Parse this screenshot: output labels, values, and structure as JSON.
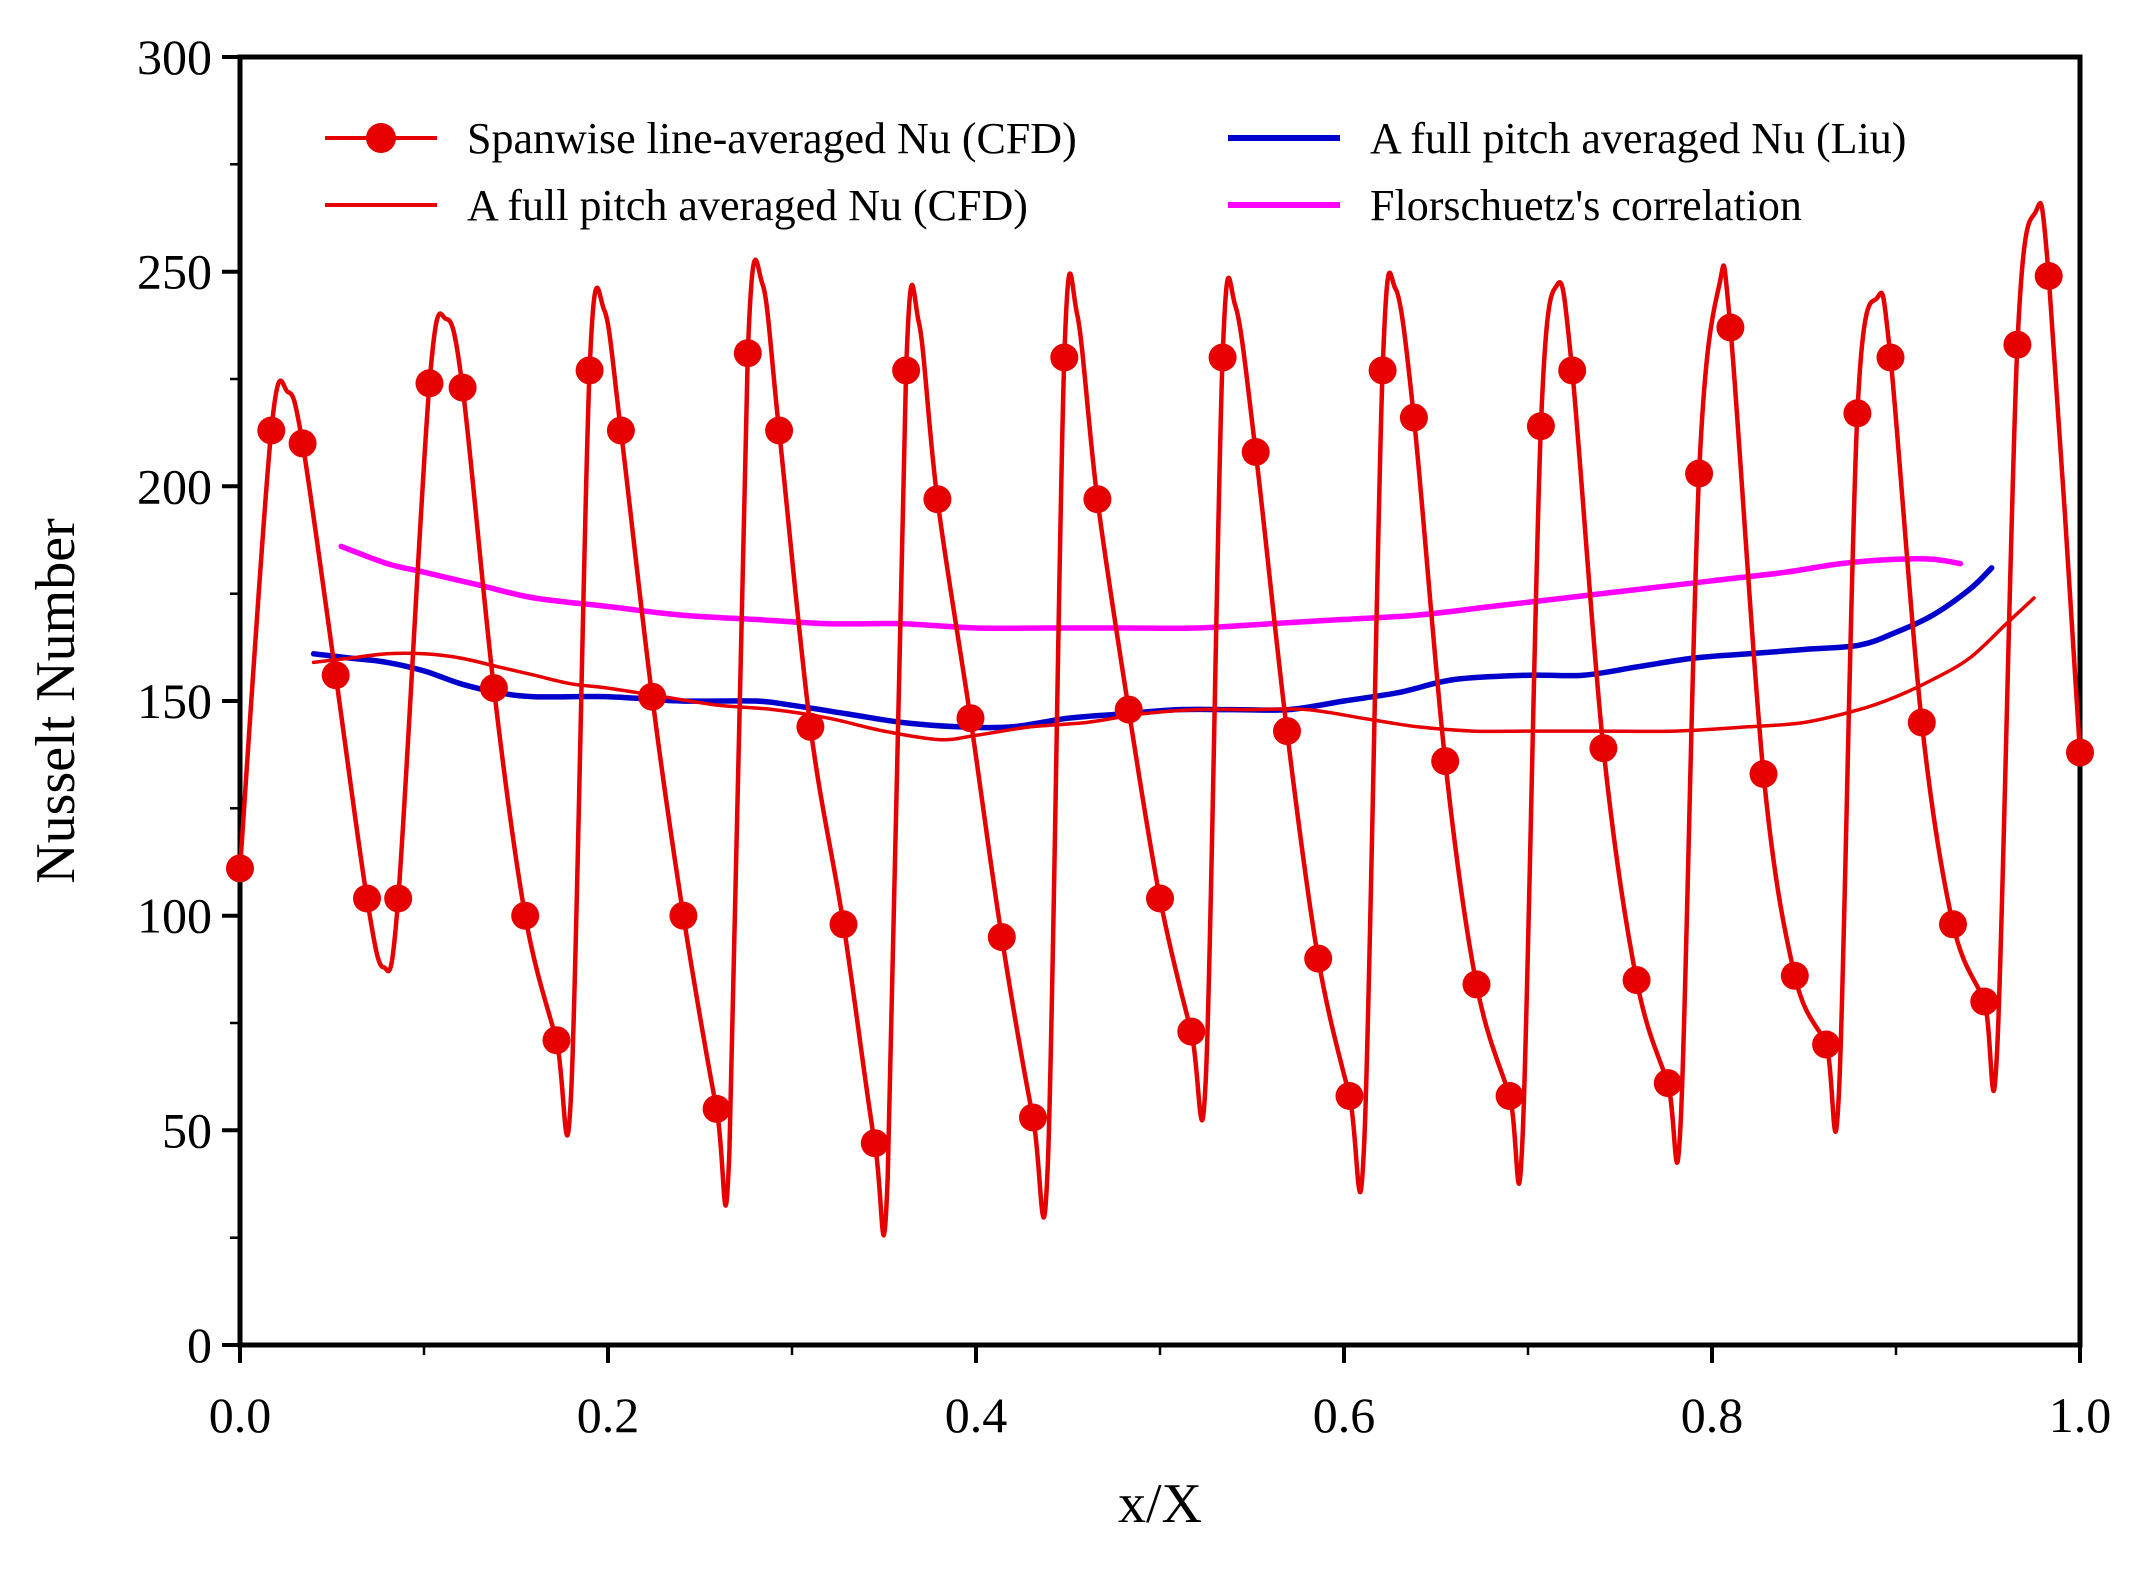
{
  "chart_data": {
    "type": "line",
    "xlabel": "x/X",
    "ylabel": "Nusselt Number",
    "xlim": [
      0,
      1
    ],
    "ylim": [
      0,
      300
    ],
    "x_tick_values": [
      0,
      0.2,
      0.4,
      0.6,
      0.8,
      1.0
    ],
    "x_tick_labels": [
      "0.0",
      "0.2",
      "0.4",
      "0.6",
      "0.8",
      "1.0"
    ],
    "y_tick_values": [
      0,
      50,
      100,
      150,
      200,
      250,
      300
    ],
    "y_tick_labels": [
      "0",
      "50",
      "100",
      "150",
      "200",
      "250",
      "300"
    ],
    "x_minor_step": 0.1,
    "y_minor_step": 25,
    "axis_color": "#000000",
    "grid": false,
    "legend_position": "top-inside-two-columns",
    "draw_order": [
      3,
      2,
      1,
      0
    ],
    "series": [
      {
        "name": "Spanwise line-averaged Nu (CFD)",
        "slug": "spanwise-cfd",
        "type": "line+markers",
        "color": "#e60000",
        "line_width": 4.5,
        "marker_radius": 14,
        "markers": [
          [
            0.0,
            111
          ],
          [
            0.017,
            213
          ],
          [
            0.034,
            210
          ],
          [
            0.052,
            156
          ],
          [
            0.069,
            104
          ],
          [
            0.086,
            104
          ],
          [
            0.103,
            224
          ],
          [
            0.121,
            223
          ],
          [
            0.138,
            153
          ],
          [
            0.155,
            100
          ],
          [
            0.172,
            71
          ],
          [
            0.19,
            227
          ],
          [
            0.207,
            213
          ],
          [
            0.224,
            151
          ],
          [
            0.241,
            100
          ],
          [
            0.259,
            55
          ],
          [
            0.276,
            231
          ],
          [
            0.293,
            213
          ],
          [
            0.31,
            144
          ],
          [
            0.328,
            98
          ],
          [
            0.345,
            47
          ],
          [
            0.362,
            227
          ],
          [
            0.379,
            197
          ],
          [
            0.397,
            146
          ],
          [
            0.414,
            95
          ],
          [
            0.431,
            53
          ],
          [
            0.448,
            230
          ],
          [
            0.466,
            197
          ],
          [
            0.483,
            148
          ],
          [
            0.5,
            104
          ],
          [
            0.517,
            73
          ],
          [
            0.534,
            230
          ],
          [
            0.552,
            208
          ],
          [
            0.569,
            143
          ],
          [
            0.586,
            90
          ],
          [
            0.603,
            58
          ],
          [
            0.621,
            227
          ],
          [
            0.638,
            216
          ],
          [
            0.655,
            136
          ],
          [
            0.672,
            84
          ],
          [
            0.69,
            58
          ],
          [
            0.707,
            214
          ],
          [
            0.724,
            227
          ],
          [
            0.741,
            139
          ],
          [
            0.759,
            85
          ],
          [
            0.776,
            61
          ],
          [
            0.793,
            203
          ],
          [
            0.81,
            237
          ],
          [
            0.828,
            133
          ],
          [
            0.845,
            86
          ],
          [
            0.862,
            70
          ],
          [
            0.879,
            217
          ],
          [
            0.897,
            230
          ],
          [
            0.914,
            145
          ],
          [
            0.931,
            98
          ],
          [
            0.948,
            80
          ],
          [
            0.966,
            233
          ],
          [
            0.983,
            249
          ],
          [
            1.0,
            138
          ]
        ],
        "curve": [
          [
            0.0,
            111
          ],
          [
            0.017,
            213
          ],
          [
            0.026,
            222
          ],
          [
            0.034,
            210
          ],
          [
            0.052,
            156
          ],
          [
            0.069,
            104
          ],
          [
            0.078,
            88
          ],
          [
            0.086,
            104
          ],
          [
            0.103,
            224
          ],
          [
            0.112,
            239
          ],
          [
            0.121,
            223
          ],
          [
            0.138,
            153
          ],
          [
            0.155,
            100
          ],
          [
            0.172,
            71
          ],
          [
            0.18,
            59
          ],
          [
            0.19,
            227
          ],
          [
            0.198,
            241
          ],
          [
            0.207,
            213
          ],
          [
            0.224,
            151
          ],
          [
            0.241,
            100
          ],
          [
            0.259,
            55
          ],
          [
            0.266,
            45
          ],
          [
            0.276,
            231
          ],
          [
            0.284,
            247
          ],
          [
            0.293,
            213
          ],
          [
            0.31,
            144
          ],
          [
            0.328,
            98
          ],
          [
            0.345,
            47
          ],
          [
            0.352,
            39
          ],
          [
            0.362,
            227
          ],
          [
            0.369,
            238
          ],
          [
            0.379,
            197
          ],
          [
            0.397,
            146
          ],
          [
            0.414,
            95
          ],
          [
            0.431,
            53
          ],
          [
            0.439,
            42
          ],
          [
            0.448,
            230
          ],
          [
            0.455,
            240
          ],
          [
            0.466,
            197
          ],
          [
            0.483,
            148
          ],
          [
            0.5,
            104
          ],
          [
            0.517,
            73
          ],
          [
            0.525,
            63
          ],
          [
            0.534,
            230
          ],
          [
            0.541,
            242
          ],
          [
            0.552,
            208
          ],
          [
            0.569,
            143
          ],
          [
            0.586,
            90
          ],
          [
            0.603,
            58
          ],
          [
            0.611,
            47
          ],
          [
            0.621,
            227
          ],
          [
            0.628,
            246
          ],
          [
            0.638,
            216
          ],
          [
            0.655,
            136
          ],
          [
            0.672,
            84
          ],
          [
            0.69,
            58
          ],
          [
            0.697,
            48
          ],
          [
            0.707,
            214
          ],
          [
            0.716,
            247
          ],
          [
            0.724,
            227
          ],
          [
            0.741,
            139
          ],
          [
            0.759,
            85
          ],
          [
            0.776,
            61
          ],
          [
            0.783,
            52
          ],
          [
            0.793,
            203
          ],
          [
            0.804,
            247
          ],
          [
            0.81,
            237
          ],
          [
            0.828,
            133
          ],
          [
            0.845,
            86
          ],
          [
            0.862,
            70
          ],
          [
            0.869,
            59
          ],
          [
            0.879,
            217
          ],
          [
            0.89,
            244
          ],
          [
            0.897,
            230
          ],
          [
            0.914,
            145
          ],
          [
            0.931,
            98
          ],
          [
            0.948,
            80
          ],
          [
            0.955,
            69
          ],
          [
            0.966,
            233
          ],
          [
            0.976,
            264
          ],
          [
            0.983,
            249
          ],
          [
            1.0,
            138
          ]
        ]
      },
      {
        "name": "A full pitch averaged Nu (CFD)",
        "slug": "pitch-avg-cfd",
        "type": "line",
        "color": "#e60000",
        "line_width": 3.5,
        "curve": [
          [
            0.04,
            159
          ],
          [
            0.06,
            160
          ],
          [
            0.08,
            161
          ],
          [
            0.1,
            161
          ],
          [
            0.12,
            160
          ],
          [
            0.14,
            158
          ],
          [
            0.16,
            156
          ],
          [
            0.18,
            154
          ],
          [
            0.2,
            153
          ],
          [
            0.23,
            151
          ],
          [
            0.26,
            149
          ],
          [
            0.29,
            148
          ],
          [
            0.32,
            146
          ],
          [
            0.35,
            143
          ],
          [
            0.38,
            141
          ],
          [
            0.4,
            142
          ],
          [
            0.43,
            144
          ],
          [
            0.46,
            145
          ],
          [
            0.49,
            147
          ],
          [
            0.52,
            148
          ],
          [
            0.55,
            148
          ],
          [
            0.58,
            148
          ],
          [
            0.61,
            146
          ],
          [
            0.64,
            144
          ],
          [
            0.67,
            143
          ],
          [
            0.7,
            143
          ],
          [
            0.74,
            143
          ],
          [
            0.78,
            143
          ],
          [
            0.82,
            144
          ],
          [
            0.85,
            145
          ],
          [
            0.88,
            148
          ],
          [
            0.9,
            151
          ],
          [
            0.92,
            155
          ],
          [
            0.94,
            160
          ],
          [
            0.96,
            168
          ],
          [
            0.975,
            174
          ]
        ]
      },
      {
        "name": "A full pitch averaged Nu (Liu)",
        "slug": "pitch-avg-liu",
        "type": "line",
        "color": "#0000cd",
        "line_width": 5.5,
        "curve": [
          [
            0.04,
            161
          ],
          [
            0.06,
            160
          ],
          [
            0.08,
            159
          ],
          [
            0.1,
            157
          ],
          [
            0.12,
            154
          ],
          [
            0.14,
            152
          ],
          [
            0.16,
            151
          ],
          [
            0.2,
            151
          ],
          [
            0.24,
            150
          ],
          [
            0.28,
            150
          ],
          [
            0.3,
            149
          ],
          [
            0.33,
            147
          ],
          [
            0.36,
            145
          ],
          [
            0.39,
            144
          ],
          [
            0.42,
            144
          ],
          [
            0.45,
            146
          ],
          [
            0.48,
            147
          ],
          [
            0.51,
            148
          ],
          [
            0.54,
            148
          ],
          [
            0.57,
            148
          ],
          [
            0.6,
            150
          ],
          [
            0.63,
            152
          ],
          [
            0.66,
            155
          ],
          [
            0.7,
            156
          ],
          [
            0.73,
            156
          ],
          [
            0.76,
            158
          ],
          [
            0.79,
            160
          ],
          [
            0.82,
            161
          ],
          [
            0.85,
            162
          ],
          [
            0.88,
            163
          ],
          [
            0.9,
            166
          ],
          [
            0.92,
            170
          ],
          [
            0.94,
            176
          ],
          [
            0.952,
            181
          ]
        ]
      },
      {
        "name": "Florschuetz's correlation",
        "slug": "florschuetz",
        "type": "line",
        "color": "#ff00ff",
        "line_width": 5.5,
        "curve": [
          [
            0.055,
            186
          ],
          [
            0.08,
            182
          ],
          [
            0.1,
            180
          ],
          [
            0.13,
            177
          ],
          [
            0.16,
            174
          ],
          [
            0.2,
            172
          ],
          [
            0.24,
            170
          ],
          [
            0.28,
            169
          ],
          [
            0.32,
            168
          ],
          [
            0.36,
            168
          ],
          [
            0.4,
            167
          ],
          [
            0.44,
            167
          ],
          [
            0.48,
            167
          ],
          [
            0.52,
            167
          ],
          [
            0.56,
            168
          ],
          [
            0.6,
            169
          ],
          [
            0.64,
            170
          ],
          [
            0.68,
            172
          ],
          [
            0.72,
            174
          ],
          [
            0.76,
            176
          ],
          [
            0.8,
            178
          ],
          [
            0.84,
            180
          ],
          [
            0.87,
            182
          ],
          [
            0.9,
            183
          ],
          [
            0.92,
            183
          ],
          [
            0.935,
            182
          ]
        ]
      }
    ]
  }
}
